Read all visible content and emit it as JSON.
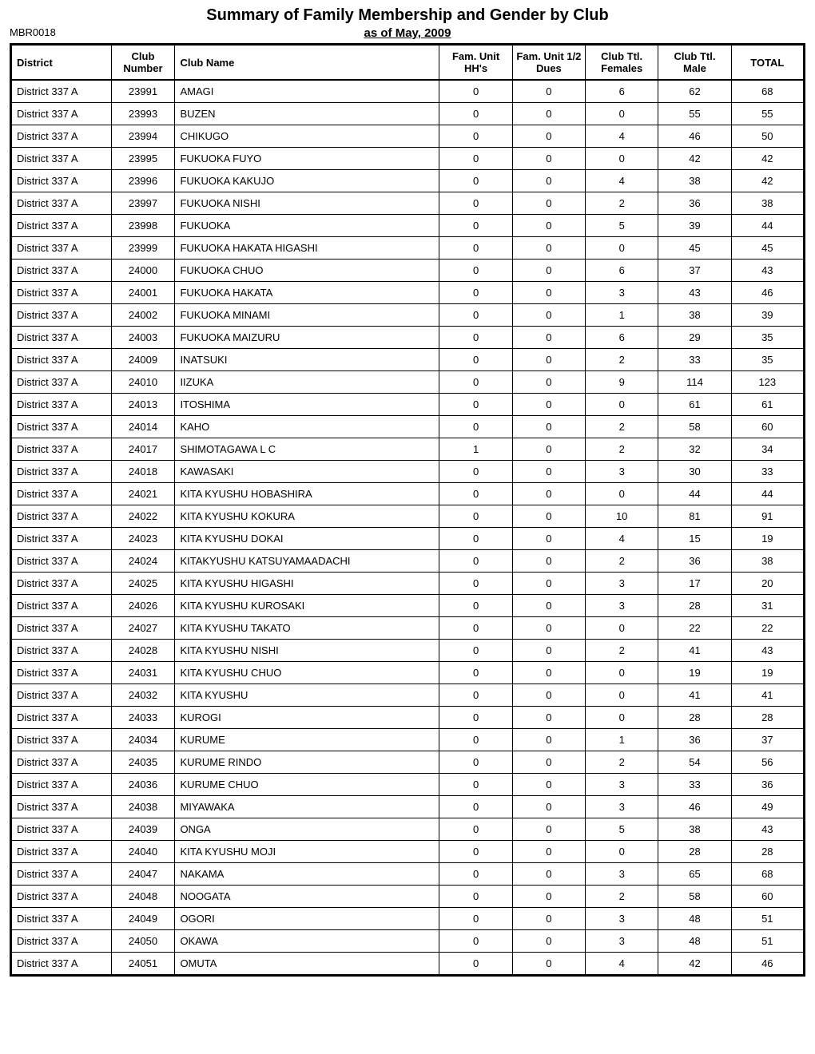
{
  "title": "Summary of Family Membership and Gender by Club",
  "reportCode": "MBR0018",
  "subtitle": "as of May, 2009",
  "headers": {
    "district": "District",
    "clubNumber": "Club Number",
    "clubName": "Club Name",
    "famUnitHH": "Fam. Unit HH's",
    "famUnitDues": "Fam. Unit 1/2 Dues",
    "clubTtlFemales": "Club Ttl. Females",
    "clubTtlMale": "Club Ttl. Male",
    "total": "TOTAL"
  },
  "rows": [
    {
      "district": "District 337 A",
      "number": "23991",
      "name": "AMAGI",
      "hh": "0",
      "dues": "0",
      "females": "6",
      "male": "62",
      "total": "68"
    },
    {
      "district": "District 337 A",
      "number": "23993",
      "name": "BUZEN",
      "hh": "0",
      "dues": "0",
      "females": "0",
      "male": "55",
      "total": "55"
    },
    {
      "district": "District 337 A",
      "number": "23994",
      "name": "CHIKUGO",
      "hh": "0",
      "dues": "0",
      "females": "4",
      "male": "46",
      "total": "50"
    },
    {
      "district": "District 337 A",
      "number": "23995",
      "name": "FUKUOKA FUYO",
      "hh": "0",
      "dues": "0",
      "females": "0",
      "male": "42",
      "total": "42"
    },
    {
      "district": "District 337 A",
      "number": "23996",
      "name": "FUKUOKA KAKUJO",
      "hh": "0",
      "dues": "0",
      "females": "4",
      "male": "38",
      "total": "42"
    },
    {
      "district": "District 337 A",
      "number": "23997",
      "name": "FUKUOKA NISHI",
      "hh": "0",
      "dues": "0",
      "females": "2",
      "male": "36",
      "total": "38"
    },
    {
      "district": "District 337 A",
      "number": "23998",
      "name": "FUKUOKA",
      "hh": "0",
      "dues": "0",
      "females": "5",
      "male": "39",
      "total": "44"
    },
    {
      "district": "District 337 A",
      "number": "23999",
      "name": "FUKUOKA HAKATA HIGASHI",
      "hh": "0",
      "dues": "0",
      "females": "0",
      "male": "45",
      "total": "45"
    },
    {
      "district": "District 337 A",
      "number": "24000",
      "name": "FUKUOKA CHUO",
      "hh": "0",
      "dues": "0",
      "females": "6",
      "male": "37",
      "total": "43"
    },
    {
      "district": "District 337 A",
      "number": "24001",
      "name": "FUKUOKA HAKATA",
      "hh": "0",
      "dues": "0",
      "females": "3",
      "male": "43",
      "total": "46"
    },
    {
      "district": "District 337 A",
      "number": "24002",
      "name": "FUKUOKA MINAMI",
      "hh": "0",
      "dues": "0",
      "females": "1",
      "male": "38",
      "total": "39"
    },
    {
      "district": "District 337 A",
      "number": "24003",
      "name": "FUKUOKA MAIZURU",
      "hh": "0",
      "dues": "0",
      "females": "6",
      "male": "29",
      "total": "35"
    },
    {
      "district": "District 337 A",
      "number": "24009",
      "name": "INATSUKI",
      "hh": "0",
      "dues": "0",
      "females": "2",
      "male": "33",
      "total": "35"
    },
    {
      "district": "District 337 A",
      "number": "24010",
      "name": "IIZUKA",
      "hh": "0",
      "dues": "0",
      "females": "9",
      "male": "114",
      "total": "123"
    },
    {
      "district": "District 337 A",
      "number": "24013",
      "name": "ITOSHIMA",
      "hh": "0",
      "dues": "0",
      "females": "0",
      "male": "61",
      "total": "61"
    },
    {
      "district": "District 337 A",
      "number": "24014",
      "name": "KAHO",
      "hh": "0",
      "dues": "0",
      "females": "2",
      "male": "58",
      "total": "60"
    },
    {
      "district": "District 337 A",
      "number": "24017",
      "name": "SHIMOTAGAWA L C",
      "hh": "1",
      "dues": "0",
      "females": "2",
      "male": "32",
      "total": "34"
    },
    {
      "district": "District 337 A",
      "number": "24018",
      "name": "KAWASAKI",
      "hh": "0",
      "dues": "0",
      "females": "3",
      "male": "30",
      "total": "33"
    },
    {
      "district": "District 337 A",
      "number": "24021",
      "name": "KITA KYUSHU HOBASHIRA",
      "hh": "0",
      "dues": "0",
      "females": "0",
      "male": "44",
      "total": "44"
    },
    {
      "district": "District 337 A",
      "number": "24022",
      "name": "KITA KYUSHU KOKURA",
      "hh": "0",
      "dues": "0",
      "females": "10",
      "male": "81",
      "total": "91"
    },
    {
      "district": "District 337 A",
      "number": "24023",
      "name": "KITA KYUSHU DOKAI",
      "hh": "0",
      "dues": "0",
      "females": "4",
      "male": "15",
      "total": "19"
    },
    {
      "district": "District 337 A",
      "number": "24024",
      "name": "KITAKYUSHU KATSUYAMAADACHI",
      "hh": "0",
      "dues": "0",
      "females": "2",
      "male": "36",
      "total": "38"
    },
    {
      "district": "District 337 A",
      "number": "24025",
      "name": "KITA KYUSHU HIGASHI",
      "hh": "0",
      "dues": "0",
      "females": "3",
      "male": "17",
      "total": "20"
    },
    {
      "district": "District 337 A",
      "number": "24026",
      "name": "KITA KYUSHU KUROSAKI",
      "hh": "0",
      "dues": "0",
      "females": "3",
      "male": "28",
      "total": "31"
    },
    {
      "district": "District 337 A",
      "number": "24027",
      "name": "KITA KYUSHU TAKATO",
      "hh": "0",
      "dues": "0",
      "females": "0",
      "male": "22",
      "total": "22"
    },
    {
      "district": "District 337 A",
      "number": "24028",
      "name": "KITA KYUSHU NISHI",
      "hh": "0",
      "dues": "0",
      "females": "2",
      "male": "41",
      "total": "43"
    },
    {
      "district": "District 337 A",
      "number": "24031",
      "name": "KITA KYUSHU CHUO",
      "hh": "0",
      "dues": "0",
      "females": "0",
      "male": "19",
      "total": "19"
    },
    {
      "district": "District 337 A",
      "number": "24032",
      "name": "KITA KYUSHU",
      "hh": "0",
      "dues": "0",
      "females": "0",
      "male": "41",
      "total": "41"
    },
    {
      "district": "District 337 A",
      "number": "24033",
      "name": "KUROGI",
      "hh": "0",
      "dues": "0",
      "females": "0",
      "male": "28",
      "total": "28"
    },
    {
      "district": "District 337 A",
      "number": "24034",
      "name": "KURUME",
      "hh": "0",
      "dues": "0",
      "females": "1",
      "male": "36",
      "total": "37"
    },
    {
      "district": "District 337 A",
      "number": "24035",
      "name": "KURUME RINDO",
      "hh": "0",
      "dues": "0",
      "females": "2",
      "male": "54",
      "total": "56"
    },
    {
      "district": "District 337 A",
      "number": "24036",
      "name": "KURUME CHUO",
      "hh": "0",
      "dues": "0",
      "females": "3",
      "male": "33",
      "total": "36"
    },
    {
      "district": "District 337 A",
      "number": "24038",
      "name": "MIYAWAKA",
      "hh": "0",
      "dues": "0",
      "females": "3",
      "male": "46",
      "total": "49"
    },
    {
      "district": "District 337 A",
      "number": "24039",
      "name": "ONGA",
      "hh": "0",
      "dues": "0",
      "females": "5",
      "male": "38",
      "total": "43"
    },
    {
      "district": "District 337 A",
      "number": "24040",
      "name": "KITA KYUSHU MOJI",
      "hh": "0",
      "dues": "0",
      "females": "0",
      "male": "28",
      "total": "28"
    },
    {
      "district": "District 337 A",
      "number": "24047",
      "name": "NAKAMA",
      "hh": "0",
      "dues": "0",
      "females": "3",
      "male": "65",
      "total": "68"
    },
    {
      "district": "District 337 A",
      "number": "24048",
      "name": "NOOGATA",
      "hh": "0",
      "dues": "0",
      "females": "2",
      "male": "58",
      "total": "60"
    },
    {
      "district": "District 337 A",
      "number": "24049",
      "name": "OGORI",
      "hh": "0",
      "dues": "0",
      "females": "3",
      "male": "48",
      "total": "51"
    },
    {
      "district": "District 337 A",
      "number": "24050",
      "name": "OKAWA",
      "hh": "0",
      "dues": "0",
      "females": "3",
      "male": "48",
      "total": "51"
    },
    {
      "district": "District 337 A",
      "number": "24051",
      "name": "OMUTA",
      "hh": "0",
      "dues": "0",
      "females": "4",
      "male": "42",
      "total": "46"
    }
  ]
}
